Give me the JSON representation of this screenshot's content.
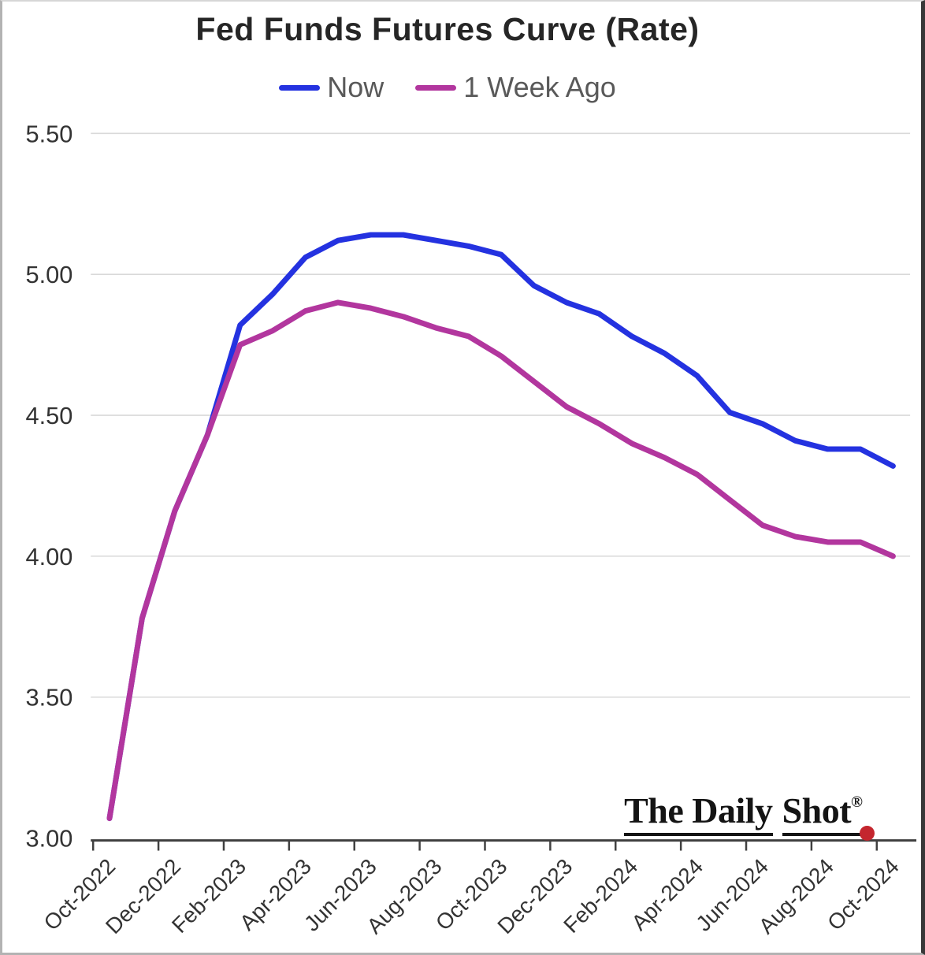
{
  "chart_data": {
    "type": "line",
    "title": "Fed Funds Futures Curve (Rate)",
    "categories": [
      "Oct-2022",
      "Nov-2022",
      "Dec-2022",
      "Jan-2023",
      "Feb-2023",
      "Mar-2023",
      "Apr-2023",
      "May-2023",
      "Jun-2023",
      "Jul-2023",
      "Aug-2023",
      "Sep-2023",
      "Oct-2023",
      "Nov-2023",
      "Dec-2023",
      "Jan-2024",
      "Feb-2024",
      "Mar-2024",
      "Apr-2024",
      "May-2024",
      "Jun-2024",
      "Jul-2024",
      "Aug-2024",
      "Sep-2024",
      "Oct-2024"
    ],
    "x_tick_labels": [
      "Oct-2022",
      "Dec-2022",
      "Feb-2023",
      "Apr-2023",
      "Jun-2023",
      "Aug-2023",
      "Oct-2023",
      "Dec-2023",
      "Feb-2024",
      "Apr-2024",
      "Jun-2024",
      "Aug-2024",
      "Oct-2024"
    ],
    "series": [
      {
        "name": "Now",
        "color": "#2432e0",
        "values": [
          3.07,
          3.78,
          4.16,
          4.43,
          4.82,
          4.93,
          5.06,
          5.12,
          5.14,
          5.14,
          5.12,
          5.1,
          5.07,
          4.96,
          4.9,
          4.86,
          4.78,
          4.72,
          4.64,
          4.51,
          4.47,
          4.41,
          4.38,
          4.38,
          4.32
        ]
      },
      {
        "name": "1 Week Ago",
        "color": "#b2369e",
        "values": [
          3.07,
          3.78,
          4.16,
          4.43,
          4.75,
          4.8,
          4.87,
          4.9,
          4.88,
          4.85,
          4.81,
          4.78,
          4.71,
          4.62,
          4.53,
          4.47,
          4.4,
          4.35,
          4.29,
          4.2,
          4.11,
          4.07,
          4.05,
          4.05,
          4.0
        ]
      }
    ],
    "ylim": [
      3.0,
      5.5
    ],
    "y_ticks": [
      "3.00",
      "3.50",
      "4.00",
      "4.50",
      "5.00",
      "5.50"
    ],
    "grid": true,
    "legend_position": "top",
    "colors": {
      "grid": "#d9d9d9",
      "axis": "#404040",
      "tick_label": "#333333",
      "title": "#262626",
      "legend_text": "#595959"
    }
  },
  "branding": {
    "logo_text_1": "The Daily",
    "logo_text_2": "Shot",
    "registered_mark": "®"
  }
}
